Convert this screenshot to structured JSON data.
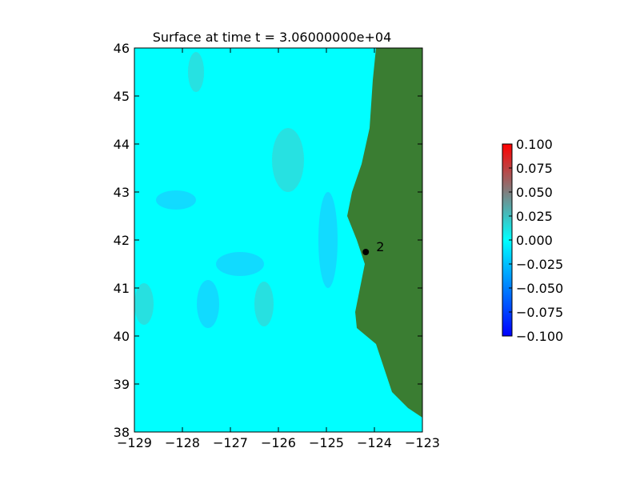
{
  "chart_data": {
    "type": "map",
    "title": "Surface at time t = 3.06000000e+04",
    "xlim": [
      -129,
      -123
    ],
    "ylim": [
      38,
      46
    ],
    "xticks": [
      {
        "value": -129,
        "label": "−129"
      },
      {
        "value": -128,
        "label": "−128"
      },
      {
        "value": -127,
        "label": "−127"
      },
      {
        "value": -126,
        "label": "−126"
      },
      {
        "value": -125,
        "label": "−125"
      },
      {
        "value": -124,
        "label": "−124"
      },
      {
        "value": -123,
        "label": "−123"
      }
    ],
    "yticks": [
      38,
      39,
      40,
      41,
      42,
      43,
      44,
      45,
      46
    ],
    "ocean_color": "#00ffff",
    "land_color": "#3a7d32",
    "colorbar": {
      "clim": [
        -0.1,
        0.1
      ],
      "colors": [
        "#0000ff",
        "#00ffff",
        "#ff0000"
      ],
      "ticks": [
        {
          "value": -0.1,
          "label": "−0.100"
        },
        {
          "value": -0.075,
          "label": "−0.075"
        },
        {
          "value": -0.05,
          "label": "−0.050"
        },
        {
          "value": -0.025,
          "label": "−0.025"
        },
        {
          "value": 0,
          "label": "0.000"
        },
        {
          "value": 0.025,
          "label": "0.025"
        },
        {
          "value": 0.05,
          "label": "0.050"
        },
        {
          "value": 0.075,
          "label": "0.075"
        },
        {
          "value": 0.1,
          "label": "0.100"
        }
      ]
    },
    "gauges": [
      {
        "label": "2",
        "x": -124.18,
        "y": 41.75
      }
    ]
  }
}
